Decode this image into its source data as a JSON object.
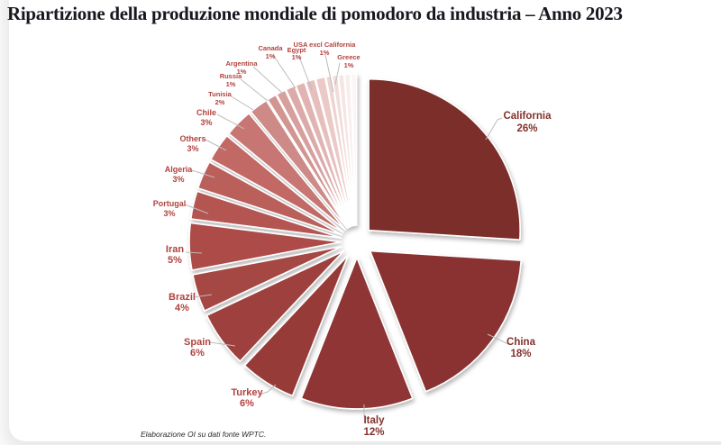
{
  "page": {
    "title": "Ripartizione della produzione mondiale di pomodoro da industria – Anno 2023",
    "source_note": "Elaborazione OI su dati fonte WPTC."
  },
  "chart_data": {
    "type": "pie",
    "title": "Ripartizione della produzione mondiale di pomodoro da industria – Anno 2023",
    "unit": "%",
    "start_angle_deg": 0,
    "direction": "clockwise",
    "style": "exploded",
    "slices": [
      {
        "label": "California",
        "value": 26,
        "color": "#7b2f2b"
      },
      {
        "label": "China",
        "value": 18,
        "color": "#8a3231"
      },
      {
        "label": "Italy",
        "value": 12,
        "color": "#8f3634"
      },
      {
        "label": "Turkey",
        "value": 6,
        "color": "#973b38"
      },
      {
        "label": "Spain",
        "value": 6,
        "color": "#9e413d"
      },
      {
        "label": "Brazil",
        "value": 4,
        "color": "#a54743"
      },
      {
        "label": "Iran",
        "value": 5,
        "color": "#ad4c48"
      },
      {
        "label": "Portugal",
        "value": 3,
        "color": "#b45551"
      },
      {
        "label": "Algeria",
        "value": 3,
        "color": "#bb5e5a"
      },
      {
        "label": "Others",
        "value": 3,
        "color": "#c26865"
      },
      {
        "label": "Chile",
        "value": 3,
        "color": "#c87673"
      },
      {
        "label": "Tunisia",
        "value": 2,
        "color": "#cd8a87"
      },
      {
        "label": "Russia",
        "value": 1,
        "color": "#d29592"
      },
      {
        "label": "Argentina",
        "value": 1,
        "color": "#d79f9d"
      },
      {
        "label": "Canada",
        "value": 1,
        "color": "#dcaaa8"
      },
      {
        "label": "Egypt",
        "value": 1,
        "color": "#e1b4b2"
      },
      {
        "label": "USA excl California",
        "value": 1,
        "color": "#e6bfbd"
      },
      {
        "label": "Greece",
        "value": 1,
        "color": "#ebc9c7"
      }
    ],
    "unlabeled_remainder": {
      "total_value": 3,
      "segment_count": 5,
      "segment_colors": [
        "#efd3d1",
        "#f2dcda",
        "#f5e5e4",
        "#f8eeed",
        "#fbf6f5"
      ]
    },
    "label_colors": {
      "large": "#84302b",
      "small": "#b2423e"
    },
    "leader_line_color": "#bcbcbc"
  }
}
